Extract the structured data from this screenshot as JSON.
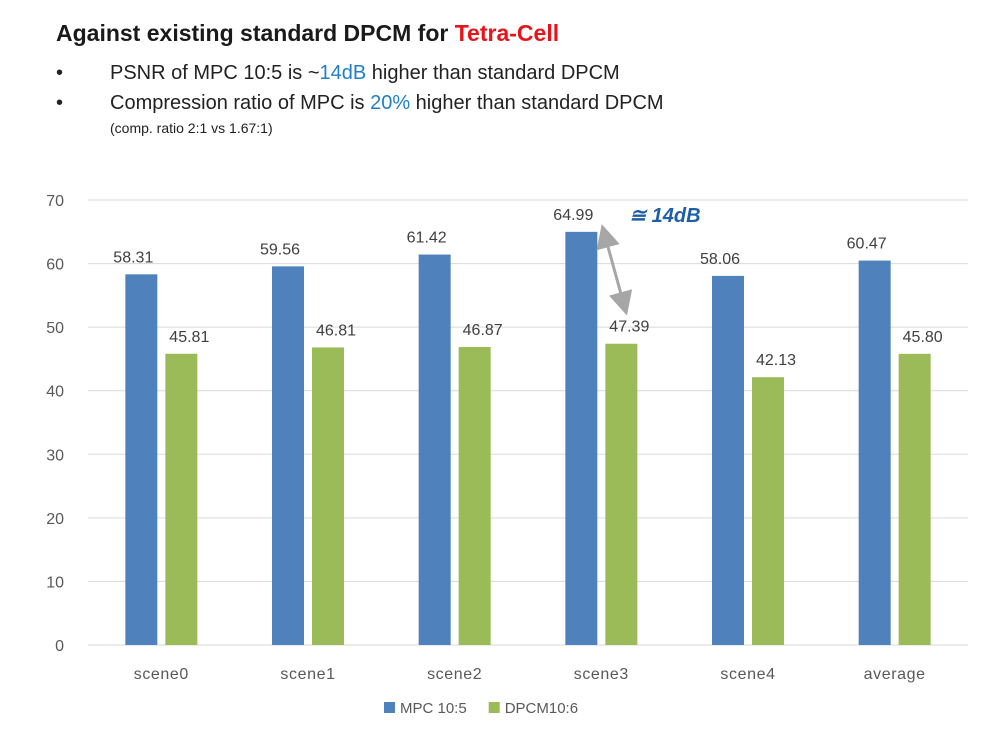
{
  "slide": {
    "title_prefix": "Against existing standard DPCM for ",
    "title_highlight": "Tetra-Cell",
    "bullet_symbol": "•",
    "bullets": [
      {
        "before": "PSNR of MPC 10:5 is ~",
        "highlight": "14dB",
        "after": " higher than standard DPCM"
      },
      {
        "before": "Compression ratio of MPC is ",
        "highlight": "20%",
        "after": " higher than standard DPCM"
      }
    ],
    "subnote": "(comp. ratio 2:1 vs 1.67:1)",
    "annotation": "≅ 14dB",
    "colors": {
      "title_highlight": "#e8141a",
      "text_highlight": "#1f7fc9",
      "annotation": "#1f5fa6"
    }
  },
  "chart_data": {
    "type": "bar",
    "categories": [
      "scene0",
      "scene1",
      "scene2",
      "scene3",
      "scene4",
      "average"
    ],
    "series": [
      {
        "name": "MPC 10:5",
        "values": [
          58.31,
          59.56,
          61.42,
          64.99,
          58.06,
          60.47
        ],
        "labels": [
          "58.31",
          "59.56",
          "61.42",
          "64.99",
          "58.06",
          "60.47"
        ],
        "color": "#4f81bd"
      },
      {
        "name": "DPCM10:6",
        "values": [
          45.81,
          46.81,
          46.87,
          47.39,
          42.13,
          45.8
        ],
        "labels": [
          "45.81",
          "46.81",
          "46.87",
          "47.39",
          "42.13",
          "45.80"
        ],
        "color": "#9bbb59"
      }
    ],
    "ylim": [
      0,
      70
    ],
    "yticks": [
      0,
      10,
      20,
      30,
      40,
      50,
      60,
      70
    ],
    "grid": true,
    "legend": "bottom",
    "annotation": {
      "text": "≅ 14dB",
      "category": "scene3",
      "from_value": 64.99,
      "to_value": 47.39
    }
  }
}
